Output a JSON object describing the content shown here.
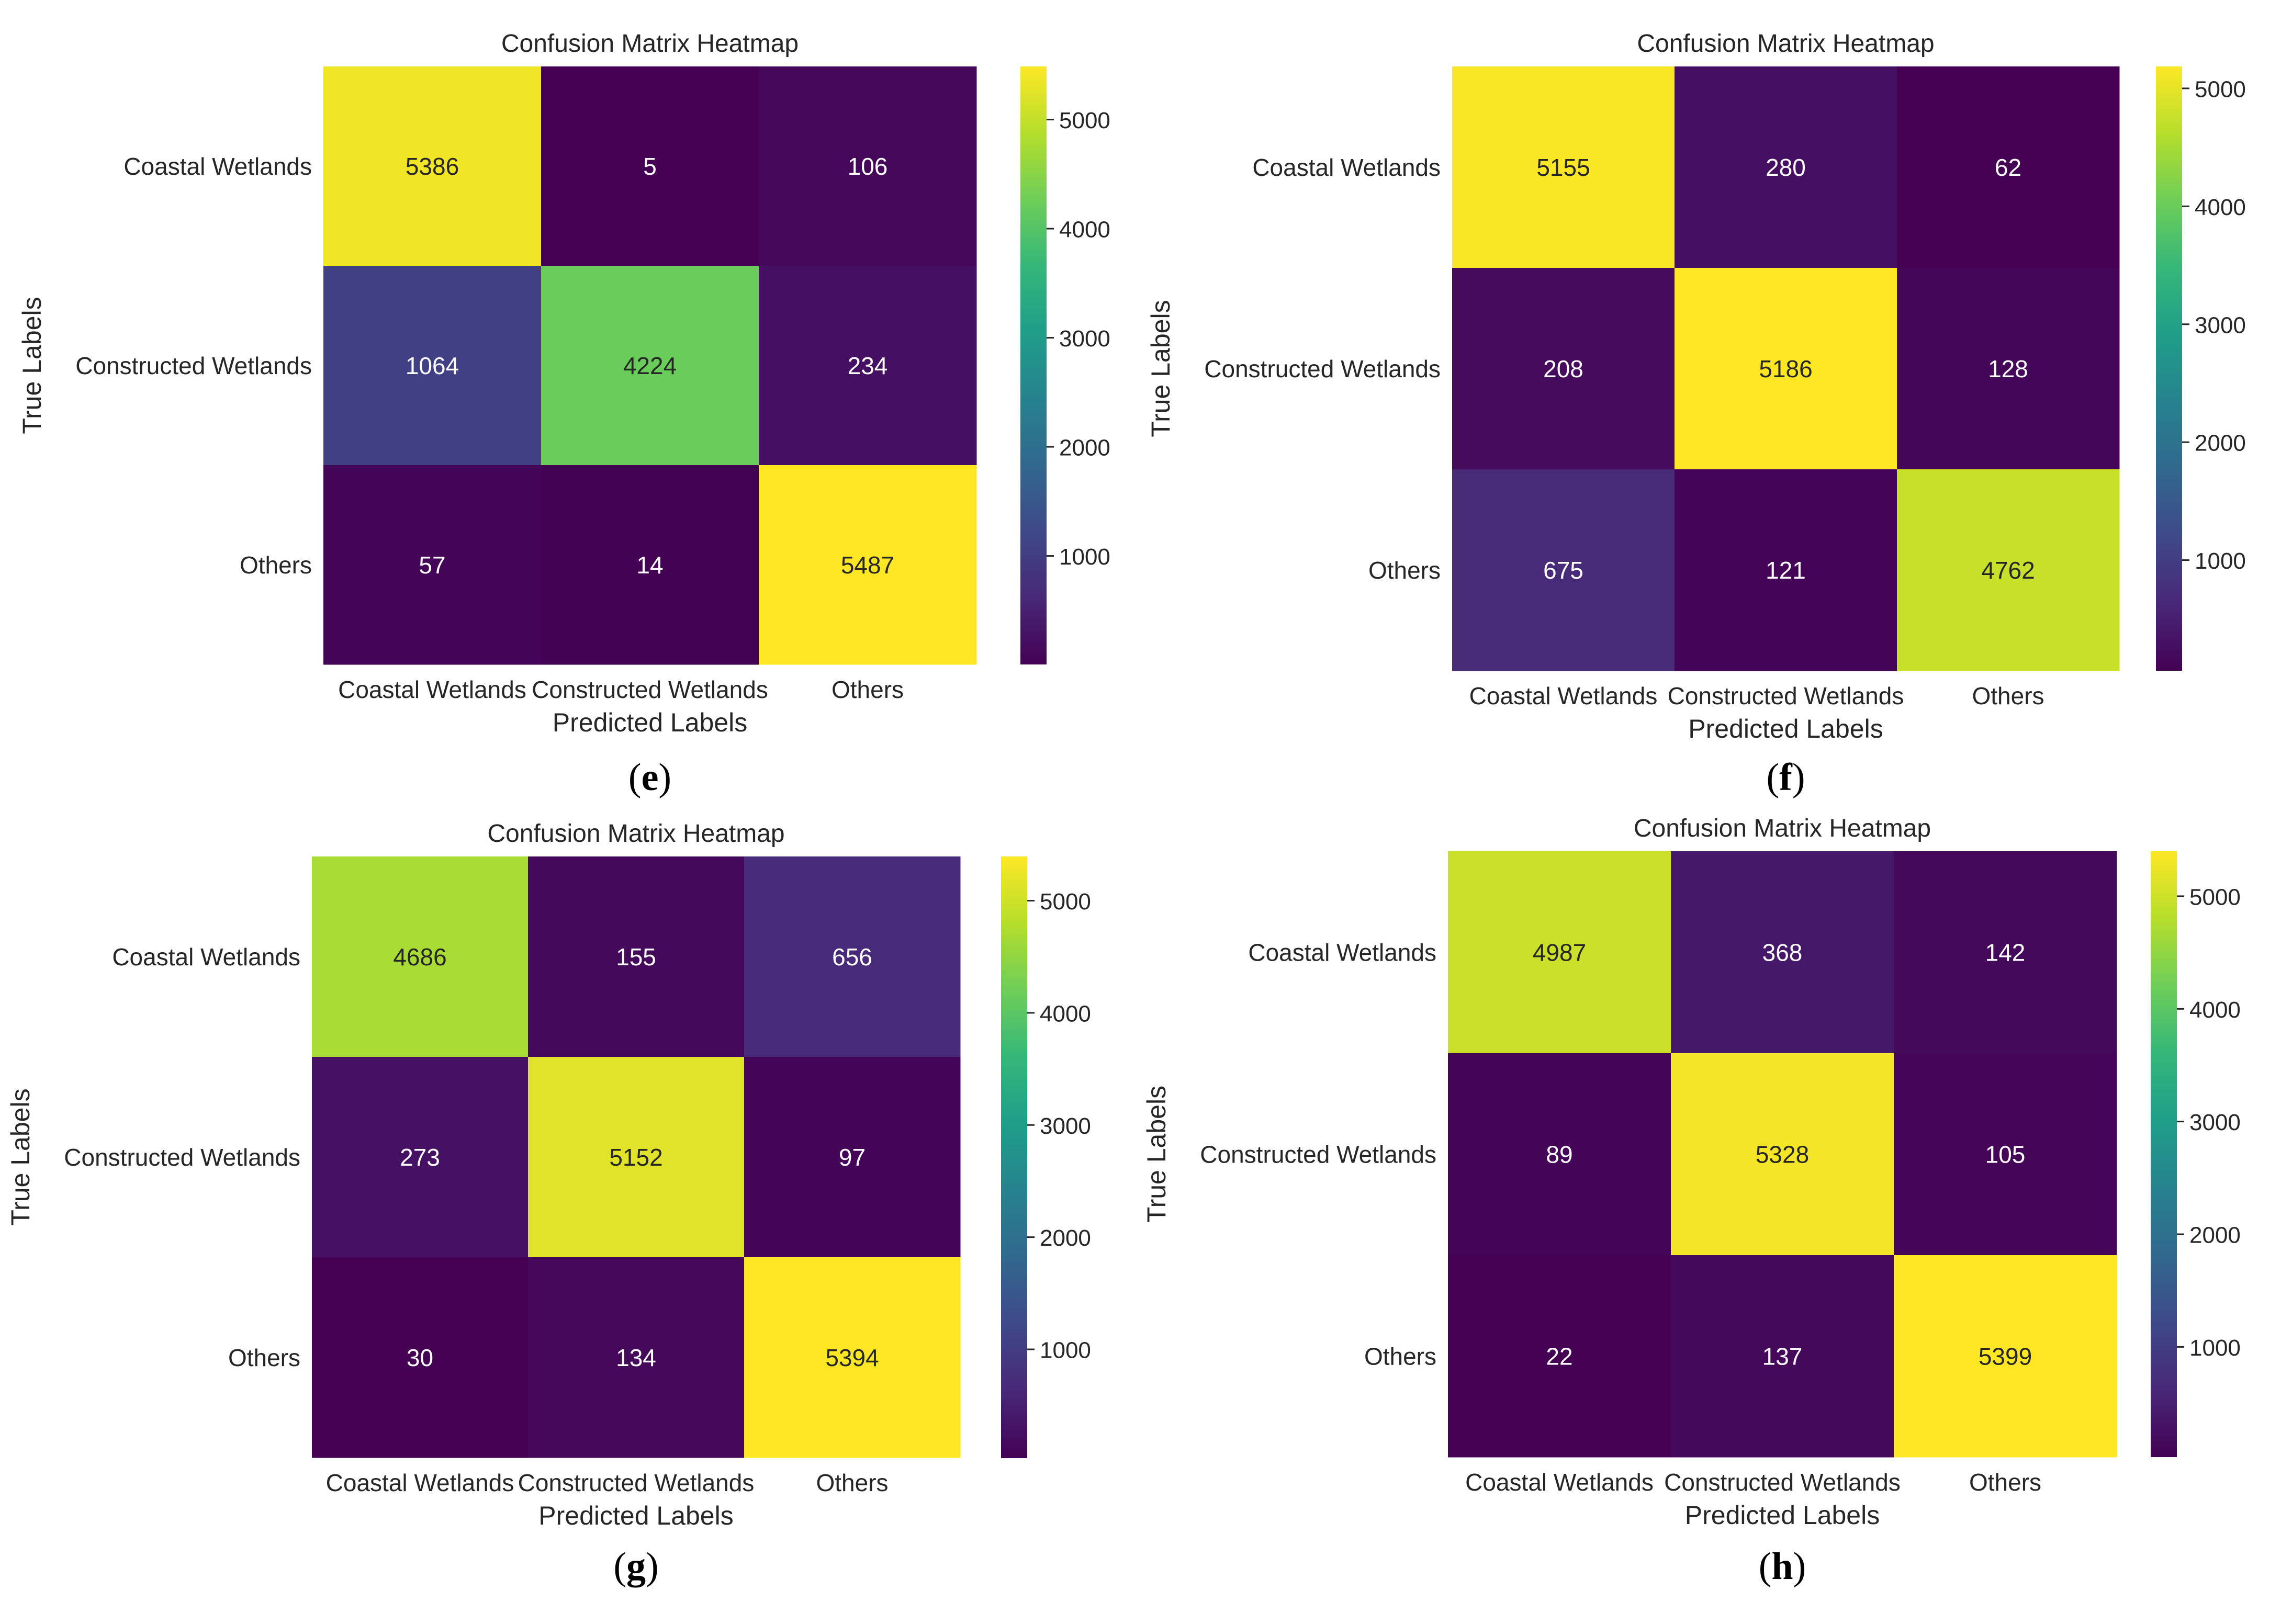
{
  "figure": {
    "colors": {
      "viridis": [
        "#440154",
        "#482878",
        "#3e4989",
        "#31688e",
        "#26828e",
        "#1f9e89",
        "#35b779",
        "#6ece58",
        "#b5de2b",
        "#fde725"
      ],
      "text_on_dark": "#ffffff",
      "text_on_light": "#262626",
      "label_text": "#262626"
    }
  },
  "chart_data": [
    {
      "type": "heatmap",
      "panel_label": "e",
      "title": "Confusion Matrix Heatmap",
      "xlabel": "Predicted Labels",
      "ylabel": "True Labels",
      "x_categories": [
        "Coastal Wetlands",
        "Constructed Wetlands",
        "Others"
      ],
      "y_categories": [
        "Coastal Wetlands",
        "Constructed Wetlands",
        "Others"
      ],
      "values": [
        [
          5386,
          5,
          106
        ],
        [
          1064,
          4224,
          234
        ],
        [
          57,
          14,
          5487
        ]
      ],
      "vmin": 5,
      "vmax": 5487,
      "colorbar_ticks": [
        1000,
        2000,
        3000,
        4000,
        5000
      ],
      "colorbar_tick_labels": [
        "1000",
        "2000",
        "3000",
        "4000",
        "5000"
      ]
    },
    {
      "type": "heatmap",
      "panel_label": "f",
      "title": "Confusion Matrix Heatmap",
      "xlabel": "Predicted Labels",
      "ylabel": "True Labels",
      "x_categories": [
        "Coastal Wetlands",
        "Constructed Wetlands",
        "Others"
      ],
      "y_categories": [
        "Coastal Wetlands",
        "Constructed Wetlands",
        "Others"
      ],
      "values": [
        [
          5155,
          280,
          62
        ],
        [
          208,
          5186,
          128
        ],
        [
          675,
          121,
          4762
        ]
      ],
      "vmin": 62,
      "vmax": 5186,
      "colorbar_ticks": [
        1000,
        2000,
        3000,
        4000,
        5000
      ],
      "colorbar_tick_labels": [
        "1000",
        "2000",
        "3000",
        "4000",
        "5000"
      ]
    },
    {
      "type": "heatmap",
      "panel_label": "g",
      "title": "Confusion Matrix Heatmap",
      "xlabel": "Predicted Labels",
      "ylabel": "True Labels",
      "x_categories": [
        "Coastal Wetlands",
        "Constructed Wetlands",
        "Others"
      ],
      "y_categories": [
        "Coastal Wetlands",
        "Constructed Wetlands",
        "Others"
      ],
      "values": [
        [
          4686,
          155,
          656
        ],
        [
          273,
          5152,
          97
        ],
        [
          30,
          134,
          5394
        ]
      ],
      "vmin": 30,
      "vmax": 5394,
      "colorbar_ticks": [
        1000,
        2000,
        3000,
        4000,
        5000
      ],
      "colorbar_tick_labels": [
        "1000",
        "2000",
        "3000",
        "4000",
        "5000"
      ]
    },
    {
      "type": "heatmap",
      "panel_label": "h",
      "title": "Confusion Matrix Heatmap",
      "xlabel": "Predicted Labels",
      "ylabel": "True Labels",
      "x_categories": [
        "Coastal Wetlands",
        "Constructed Wetlands",
        "Others"
      ],
      "y_categories": [
        "Coastal Wetlands",
        "Constructed Wetlands",
        "Others"
      ],
      "values": [
        [
          4987,
          368,
          142
        ],
        [
          89,
          5328,
          105
        ],
        [
          22,
          137,
          5399
        ]
      ],
      "vmin": 22,
      "vmax": 5399,
      "colorbar_ticks": [
        1000,
        2000,
        3000,
        4000,
        5000
      ],
      "colorbar_tick_labels": [
        "1000",
        "2000",
        "3000",
        "4000",
        "5000"
      ]
    }
  ]
}
